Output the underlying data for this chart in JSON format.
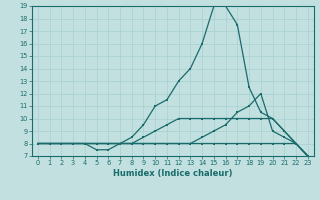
{
  "xlabel": "Humidex (Indice chaleur)",
  "bg_color": "#c2e0e0",
  "line_color": "#1a6b6b",
  "grid_color": "#a8d0d0",
  "xlim": [
    -0.5,
    23.5
  ],
  "ylim": [
    7,
    19
  ],
  "xticks": [
    0,
    1,
    2,
    3,
    4,
    5,
    6,
    7,
    8,
    9,
    10,
    11,
    12,
    13,
    14,
    15,
    16,
    17,
    18,
    19,
    20,
    21,
    22,
    23
  ],
  "yticks": [
    7,
    8,
    9,
    10,
    11,
    12,
    13,
    14,
    15,
    16,
    17,
    18,
    19
  ],
  "line1_x": [
    0,
    1,
    2,
    3,
    4,
    5,
    6,
    7,
    8,
    9,
    10,
    11,
    12,
    13,
    14,
    15,
    16,
    17,
    18,
    19,
    20,
    21,
    22,
    23
  ],
  "line1_y": [
    8,
    8,
    8,
    8,
    8,
    7.5,
    7.5,
    8,
    8.5,
    9.5,
    11,
    11.5,
    13,
    14,
    16,
    19,
    19,
    17.5,
    12.5,
    10.5,
    10,
    9,
    8,
    7
  ],
  "line2_x": [
    0,
    1,
    2,
    3,
    4,
    5,
    6,
    7,
    8,
    9,
    10,
    11,
    12,
    13,
    14,
    15,
    16,
    17,
    18,
    19,
    20,
    21,
    22,
    23
  ],
  "line2_y": [
    8,
    8,
    8,
    8,
    8,
    8,
    8,
    8,
    8,
    8.5,
    9,
    9.5,
    10,
    10,
    10,
    10,
    10,
    10,
    10,
    10,
    10,
    9,
    8,
    7
  ],
  "line3_x": [
    0,
    1,
    2,
    3,
    4,
    5,
    6,
    7,
    8,
    9,
    10,
    11,
    12,
    13,
    14,
    15,
    16,
    17,
    18,
    19,
    20,
    21,
    22,
    23
  ],
  "line3_y": [
    8,
    8,
    8,
    8,
    8,
    8,
    8,
    8,
    8,
    8,
    8,
    8,
    8,
    8,
    8.5,
    9,
    9.5,
    10.5,
    11,
    12,
    9,
    8.5,
    8,
    7
  ],
  "line4_x": [
    0,
    1,
    2,
    3,
    4,
    5,
    6,
    7,
    8,
    9,
    10,
    11,
    12,
    13,
    14,
    15,
    16,
    17,
    18,
    19,
    20,
    21,
    22,
    23
  ],
  "line4_y": [
    8,
    8,
    8,
    8,
    8,
    8,
    8,
    8,
    8,
    8,
    8,
    8,
    8,
    8,
    8,
    8,
    8,
    8,
    8,
    8,
    8,
    8,
    8,
    7
  ]
}
